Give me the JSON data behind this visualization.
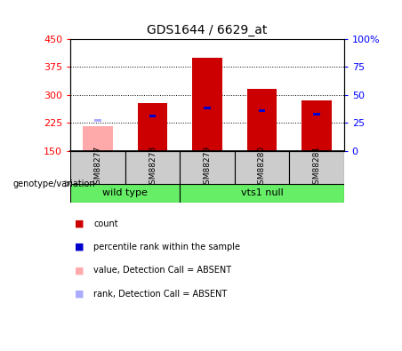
{
  "title": "GDS1644 / 6629_at",
  "samples": [
    "GSM88277",
    "GSM88278",
    "GSM88279",
    "GSM88280",
    "GSM88281"
  ],
  "ylim": [
    150,
    450
  ],
  "y2lim": [
    0,
    100
  ],
  "yticks": [
    150,
    225,
    300,
    375,
    450
  ],
  "y2ticks": [
    0,
    25,
    50,
    75,
    100
  ],
  "bar_bottom": 150,
  "count_values": [
    215,
    278,
    400,
    315,
    285
  ],
  "rank_values": [
    232,
    243,
    265,
    258,
    248
  ],
  "absent_flags": [
    true,
    false,
    false,
    false,
    false
  ],
  "bar_color_present": "#cc0000",
  "bar_color_absent": "#ffaaaa",
  "rank_color_present": "#0000cc",
  "rank_color_absent": "#aaaaff",
  "bar_width": 0.55,
  "legend_labels": [
    "count",
    "percentile rank within the sample",
    "value, Detection Call = ABSENT",
    "rank, Detection Call = ABSENT"
  ],
  "legend_colors": [
    "#cc0000",
    "#0000cc",
    "#ffaaaa",
    "#aaaaff"
  ],
  "group_wt_label": "wild type",
  "group_vts_label": "vts1 null",
  "group_color": "#66ee66",
  "sample_box_color": "#cccccc",
  "genotype_label": "genotype/variation"
}
